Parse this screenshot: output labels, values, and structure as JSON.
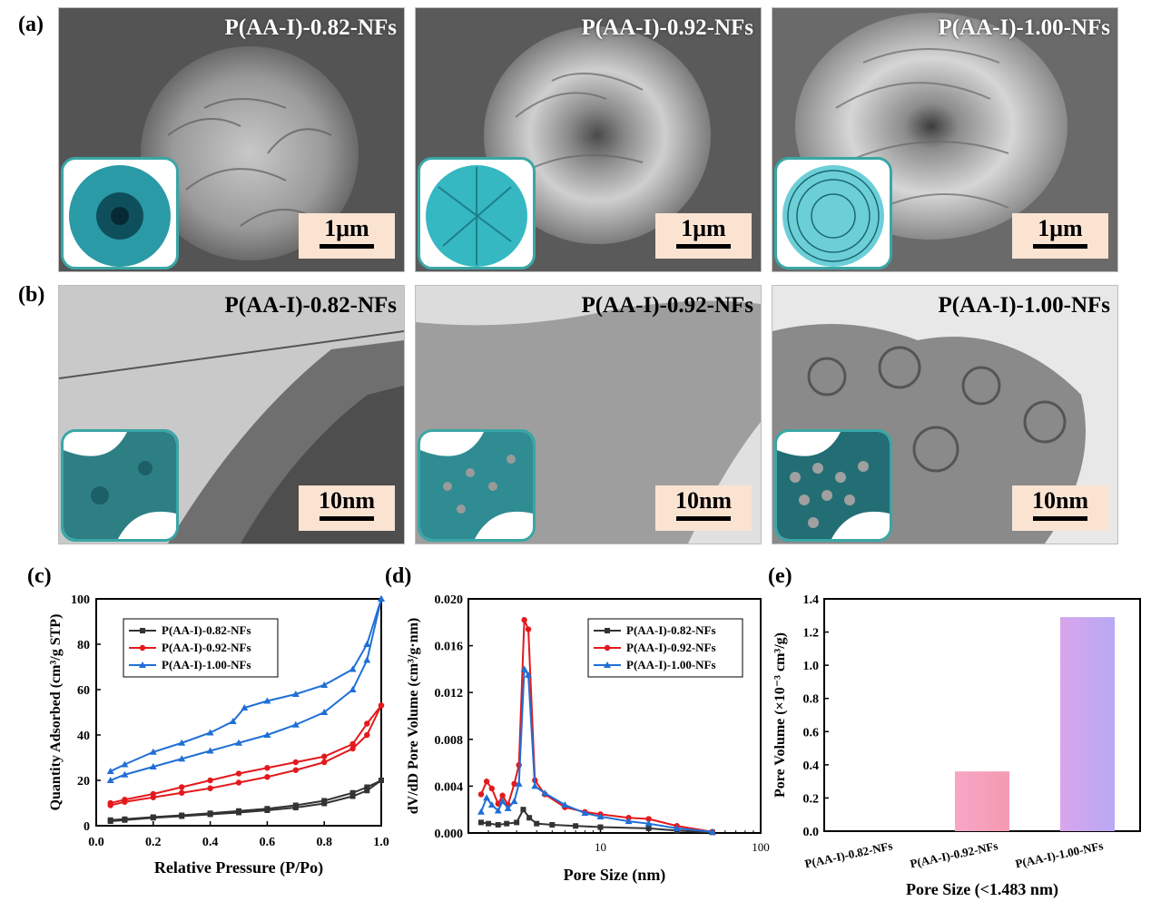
{
  "panel_labels": {
    "a": "(a)",
    "b": "(b)",
    "c": "(c)",
    "d": "(d)",
    "e": "(e)"
  },
  "sem_panels": [
    {
      "title": "P(AA-I)-0.82-NFs",
      "scale": "1μm"
    },
    {
      "title": "P(AA-I)-0.92-NFs",
      "scale": "1μm"
    },
    {
      "title": "P(AA-I)-1.00-NFs",
      "scale": "1μm"
    }
  ],
  "tem_panels": [
    {
      "title": "P(AA-I)-0.82-NFs",
      "scale": "10nm"
    },
    {
      "title": "P(AA-I)-0.92-NFs",
      "scale": "10nm"
    },
    {
      "title": "P(AA-I)-1.00-NFs",
      "scale": "10nm"
    }
  ],
  "colors": {
    "s082": "#333333",
    "s092": "#e3191c",
    "s100": "#1f6fd6",
    "teal": "#3aa6a6",
    "scale_bg": "#fbe3d2"
  },
  "chart_data": [
    {
      "type": "line",
      "xlabel": "Relative Pressure (P/Po)",
      "ylabel": "Quantity Adsorbed (cm³/g STP)",
      "xlim": [
        0.0,
        1.0
      ],
      "ylim": [
        0,
        100
      ],
      "xticks": [
        "0.0",
        "0.2",
        "0.4",
        "0.6",
        "0.8",
        "1.0"
      ],
      "yticks": [
        "0",
        "20",
        "40",
        "60",
        "80",
        "100"
      ],
      "legend": "top-left",
      "series": [
        {
          "name": "P(AA-I)-0.82-NFs",
          "marker": "square",
          "adsorption": [
            [
              0.05,
              2
            ],
            [
              0.1,
              2.5
            ],
            [
              0.2,
              3.5
            ],
            [
              0.3,
              4.2
            ],
            [
              0.4,
              5
            ],
            [
              0.5,
              5.8
            ],
            [
              0.6,
              6.8
            ],
            [
              0.7,
              8
            ],
            [
              0.8,
              9.8
            ],
            [
              0.9,
              13
            ],
            [
              0.95,
              15.5
            ],
            [
              1.0,
              20
            ]
          ],
          "desorption": [
            [
              1.0,
              20
            ],
            [
              0.95,
              17
            ],
            [
              0.9,
              14.5
            ],
            [
              0.8,
              11
            ],
            [
              0.7,
              9
            ],
            [
              0.6,
              7.5
            ],
            [
              0.5,
              6.5
            ],
            [
              0.4,
              5.5
            ],
            [
              0.3,
              4.6
            ],
            [
              0.2,
              3.8
            ],
            [
              0.1,
              2.9
            ],
            [
              0.05,
              2.5
            ]
          ]
        },
        {
          "name": "P(AA-I)-0.92-NFs",
          "marker": "circle",
          "adsorption": [
            [
              0.05,
              9
            ],
            [
              0.1,
              10.5
            ],
            [
              0.2,
              12.5
            ],
            [
              0.3,
              14.5
            ],
            [
              0.4,
              16.5
            ],
            [
              0.5,
              19
            ],
            [
              0.6,
              21.5
            ],
            [
              0.7,
              24.5
            ],
            [
              0.8,
              28
            ],
            [
              0.9,
              34
            ],
            [
              0.95,
              40
            ],
            [
              1.0,
              53
            ]
          ],
          "desorption": [
            [
              1.0,
              53
            ],
            [
              0.95,
              45
            ],
            [
              0.9,
              36
            ],
            [
              0.8,
              30.5
            ],
            [
              0.7,
              28
            ],
            [
              0.6,
              25.5
            ],
            [
              0.5,
              23
            ],
            [
              0.4,
              20
            ],
            [
              0.3,
              17
            ],
            [
              0.2,
              14
            ],
            [
              0.1,
              11.5
            ],
            [
              0.05,
              10
            ]
          ]
        },
        {
          "name": "P(AA-I)-1.00-NFs",
          "marker": "triangle",
          "adsorption": [
            [
              0.05,
              20
            ],
            [
              0.1,
              22.5
            ],
            [
              0.2,
              26
            ],
            [
              0.3,
              29.5
            ],
            [
              0.4,
              33
            ],
            [
              0.5,
              36.5
            ],
            [
              0.6,
              40
            ],
            [
              0.7,
              44.5
            ],
            [
              0.8,
              50
            ],
            [
              0.9,
              60
            ],
            [
              0.95,
              73
            ],
            [
              1.0,
              100
            ]
          ],
          "desorption": [
            [
              1.0,
              100
            ],
            [
              0.95,
              80
            ],
            [
              0.9,
              69
            ],
            [
              0.8,
              62
            ],
            [
              0.7,
              58
            ],
            [
              0.6,
              55
            ],
            [
              0.52,
              52
            ],
            [
              0.48,
              46
            ],
            [
              0.4,
              41
            ],
            [
              0.3,
              36.5
            ],
            [
              0.2,
              32.5
            ],
            [
              0.1,
              27
            ],
            [
              0.05,
              24
            ]
          ]
        }
      ]
    },
    {
      "type": "line",
      "xlabel": "Pore Size (nm)",
      "ylabel": "dV/dD Pore Volume (cm³/g·nm)",
      "xscale": "log",
      "xlim": [
        1.5,
        100
      ],
      "ylim": [
        0,
        0.02
      ],
      "xticks": [
        "10",
        "100"
      ],
      "yticks": [
        "0.000",
        "0.004",
        "0.008",
        "0.012",
        "0.016",
        "0.020"
      ],
      "legend": "top-right",
      "series": [
        {
          "name": "P(AA-I)-0.82-NFs",
          "marker": "square",
          "points": [
            [
              1.8,
              0.0009
            ],
            [
              2.0,
              0.0008
            ],
            [
              2.3,
              0.0007
            ],
            [
              2.6,
              0.0008
            ],
            [
              3.0,
              0.0009
            ],
            [
              3.3,
              0.002
            ],
            [
              3.6,
              0.0013
            ],
            [
              4.0,
              0.0008
            ],
            [
              5,
              0.0007
            ],
            [
              7,
              0.0006
            ],
            [
              10,
              0.0005
            ],
            [
              20,
              0.0004
            ],
            [
              30,
              0.0002
            ],
            [
              50,
              5e-05
            ]
          ]
        },
        {
          "name": "P(AA-I)-0.92-NFs",
          "marker": "circle",
          "points": [
            [
              1.8,
              0.0033
            ],
            [
              1.95,
              0.0044
            ],
            [
              2.1,
              0.0038
            ],
            [
              2.3,
              0.0025
            ],
            [
              2.45,
              0.0032
            ],
            [
              2.65,
              0.0024
            ],
            [
              2.9,
              0.0042
            ],
            [
              3.1,
              0.0058
            ],
            [
              3.35,
              0.0182
            ],
            [
              3.55,
              0.0174
            ],
            [
              3.9,
              0.0045
            ],
            [
              4.5,
              0.0033
            ],
            [
              6,
              0.0022
            ],
            [
              8,
              0.0018
            ],
            [
              10,
              0.0016
            ],
            [
              15,
              0.0013
            ],
            [
              20,
              0.0012
            ],
            [
              30,
              0.0006
            ],
            [
              50,
              0.0001
            ]
          ]
        },
        {
          "name": "P(AA-I)-1.00-NFs",
          "marker": "triangle",
          "points": [
            [
              1.8,
              0.0018
            ],
            [
              1.95,
              0.003
            ],
            [
              2.1,
              0.0024
            ],
            [
              2.3,
              0.0019
            ],
            [
              2.45,
              0.0027
            ],
            [
              2.65,
              0.0021
            ],
            [
              2.9,
              0.0027
            ],
            [
              3.1,
              0.0042
            ],
            [
              3.35,
              0.014
            ],
            [
              3.55,
              0.0135
            ],
            [
              3.9,
              0.004
            ],
            [
              4.5,
              0.0034
            ],
            [
              6,
              0.0024
            ],
            [
              8,
              0.0017
            ],
            [
              10,
              0.0014
            ],
            [
              15,
              0.001
            ],
            [
              20,
              0.0008
            ],
            [
              30,
              0.0004
            ],
            [
              50,
              0.0001
            ]
          ]
        }
      ]
    },
    {
      "type": "bar",
      "xlabel": "Pore Size (<1.483 nm)",
      "ylabel": "Pore Volume (×10⁻³ cm³/g)",
      "categories": [
        "P(AA-I)-0.82-NFs",
        "P(AA-I)-0.92-NFs",
        "P(AA-I)-1.00-NFs"
      ],
      "values": [
        0.0,
        0.36,
        1.29
      ],
      "ylim": [
        0,
        1.4
      ],
      "yticks": [
        "0.0",
        "0.2",
        "0.4",
        "0.6",
        "0.8",
        "1.0",
        "1.2",
        "1.4"
      ]
    }
  ]
}
